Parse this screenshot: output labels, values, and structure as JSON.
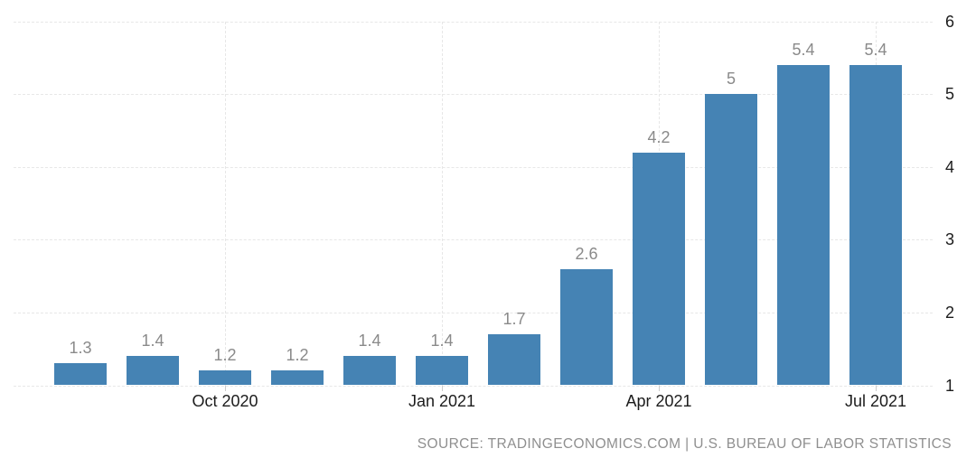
{
  "chart_data": {
    "type": "bar",
    "title": "",
    "xlabel": "",
    "ylabel": "",
    "categories": [
      "",
      "",
      "Oct 2020",
      "",
      "",
      "Jan 2021",
      "",
      "",
      "Apr 2021",
      "",
      "",
      "Jul 2021"
    ],
    "values": [
      1.3,
      1.4,
      1.2,
      1.2,
      1.4,
      1.4,
      1.7,
      2.6,
      4.2,
      5,
      5.4,
      5.4
    ],
    "value_labels": [
      "1.3",
      "1.4",
      "1.2",
      "1.2",
      "1.4",
      "1.4",
      "1.7",
      "2.6",
      "4.2",
      "5",
      "5.4",
      "5.4"
    ],
    "ylim": [
      1,
      6
    ],
    "yticks": [
      1,
      2,
      3,
      4,
      5,
      6
    ],
    "y_axis_side": "right",
    "legend_position": "none",
    "grid": "dashed",
    "colors": {
      "bar": "#4583b4",
      "grid": "#e7e7e7",
      "value_label": "#8a8a8a",
      "axis_label": "#1c1c1c",
      "tick": "#cccccc",
      "background": "#ffffff",
      "source_text": "#8f8f8f"
    }
  },
  "source": {
    "text": "SOURCE: TRADINGECONOMICS.COM | U.S. BUREAU OF LABOR STATISTICS"
  }
}
